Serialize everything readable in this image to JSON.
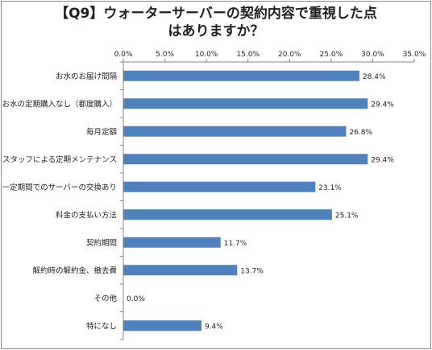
{
  "chart_data": {
    "type": "bar",
    "orientation": "horizontal",
    "title_lines": [
      "【Q9】ウォーターサーバーの契約内容で重視した点",
      "はありますか？"
    ],
    "categories": [
      "お水のお届け間隔",
      "お水の定期購入なし（都度購入）",
      "毎月定額",
      "スタッフによる定期メンテナンス",
      "一定期間でのサーバーの交換あり",
      "料金の支払い方法",
      "契約期間",
      "解約時の解約金、撤去費",
      "その他",
      "特になし"
    ],
    "values": [
      28.4,
      29.4,
      26.8,
      29.4,
      23.1,
      25.1,
      11.7,
      13.7,
      0.0,
      9.4
    ],
    "data_labels": [
      "28.4%",
      "29.4%",
      "26.8%",
      "29.4%",
      "23.1%",
      "25.1%",
      "11.7%",
      "13.7%",
      "0.0%",
      "9.4%"
    ],
    "xlim": [
      0,
      35
    ],
    "x_ticks": [
      "0.0%",
      "5.0%",
      "10.0%",
      "15.0%",
      "20.0%",
      "25.0%",
      "30.0%",
      "35.0%"
    ],
    "x_axis_position": "top",
    "grid": false,
    "legend": "none",
    "bar_color": "#4F81BD"
  }
}
